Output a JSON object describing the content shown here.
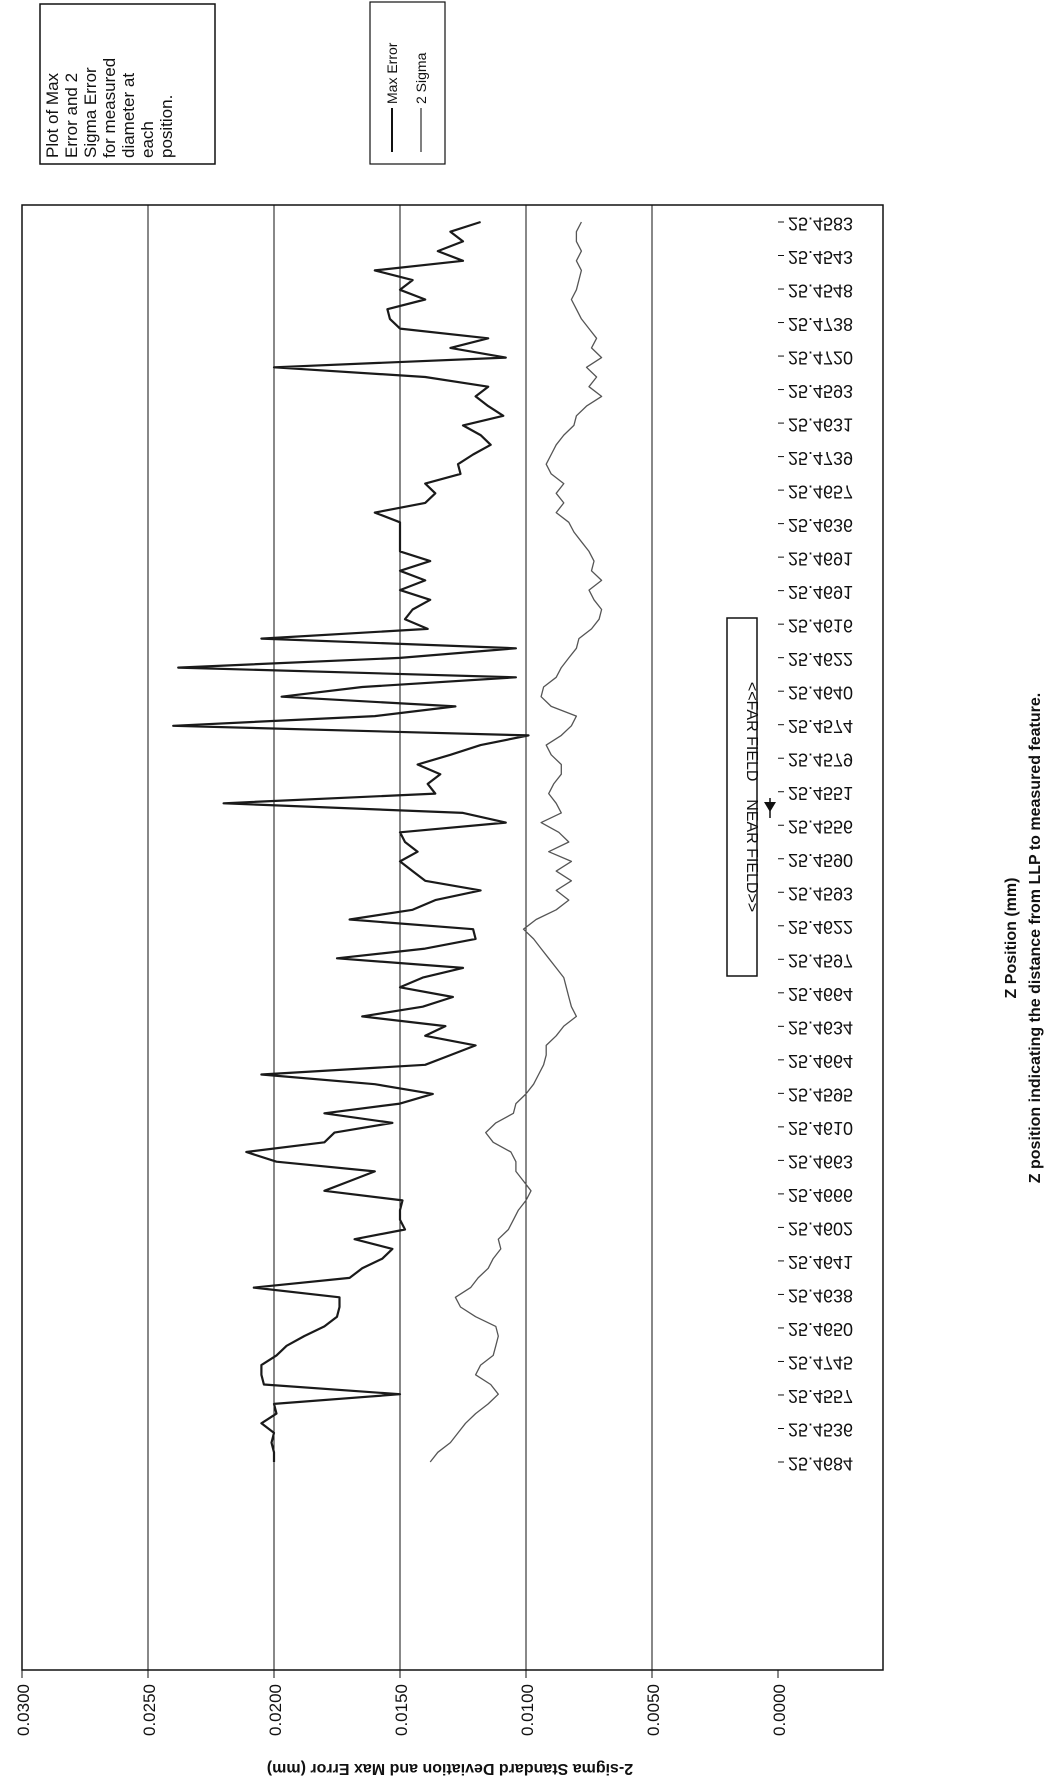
{
  "chart_data": {
    "type": "line",
    "orientation": "rotated 90 degrees clockwise (value axis runs left-to-right along the bottom, position axis runs top-to-bottom)",
    "title": "",
    "xlabel": "Z Position (mm)",
    "xlabel_sub": "Z position indicating the distance from LLP to measured feature.",
    "ylabel": "2-sigma Standard Deviation and Max Error (mm)",
    "ylim": [
      0,
      0.03
    ],
    "y_ticks": [
      "0.0000",
      "0.0050",
      "0.0100",
      "0.0150",
      "0.0200",
      "0.0250",
      "0.0300"
    ],
    "grid": "major gridlines on value axis",
    "legend_position": "top-right",
    "x_tick_labels": [
      "25.4684",
      "25.4536",
      "25.4557",
      "25.4745",
      "25.4650",
      "25.4638",
      "25.4641",
      "25.4602",
      "25.4666",
      "25.4663",
      "25.4610",
      "25.4595",
      "25.4664",
      "25.4634",
      "25.4664",
      "25.4597",
      "25.4622",
      "25.4593",
      "25.4590",
      "25.4556",
      "25.4551",
      "25.4579",
      "25.4574",
      "25.4640",
      "25.4622",
      "25.4616",
      "25.4691",
      "25.4691",
      "25.4636",
      "25.4657",
      "25.4739",
      "25.4631",
      "25.4593",
      "25.4720",
      "25.4738",
      "25.4548",
      "25.4543",
      "25.4583"
    ],
    "categories_count": 129,
    "series": [
      {
        "name": "Max Error",
        "color": "#1a1a1a",
        "values": [
          0.02,
          0.02,
          0.0201,
          0.02,
          0.0205,
          0.0199,
          0.02,
          0.015,
          0.0204,
          0.0205,
          0.0205,
          0.0199,
          0.0195,
          0.0188,
          0.018,
          0.0175,
          0.0174,
          0.0174,
          0.0208,
          0.017,
          0.0165,
          0.0157,
          0.0153,
          0.0168,
          0.0148,
          0.015,
          0.015,
          0.0149,
          0.018,
          0.017,
          0.016,
          0.0199,
          0.0211,
          0.018,
          0.0176,
          0.0153,
          0.018,
          0.015,
          0.0137,
          0.016,
          0.0205,
          0.014,
          0.013,
          0.012,
          0.014,
          0.0132,
          0.0165,
          0.0141,
          0.0129,
          0.015,
          0.0141,
          0.0125,
          0.0175,
          0.014,
          0.012,
          0.0121,
          0.017,
          0.0145,
          0.0136,
          0.0118,
          0.014,
          0.0145,
          0.015,
          0.0143,
          0.0148,
          0.015,
          0.0108,
          0.0125,
          0.022,
          0.0136,
          0.0139,
          0.0134,
          0.0143,
          0.013,
          0.0118,
          0.0099,
          0.024,
          0.016,
          0.0128,
          0.0197,
          0.0165,
          0.0104,
          0.0238,
          0.015,
          0.0104,
          0.0205,
          0.0139,
          0.0148,
          0.0145,
          0.0138,
          0.015,
          0.014,
          0.015,
          0.0138,
          0.015,
          0.015,
          0.015,
          0.015,
          0.016,
          0.014,
          0.0136,
          0.014,
          0.0126,
          0.0127,
          0.0121,
          0.0114,
          0.0118,
          0.0125,
          0.0109,
          0.0115,
          0.012,
          0.0115,
          0.014,
          0.02,
          0.0108,
          0.013,
          0.0115,
          0.015,
          0.0154,
          0.0155,
          0.014,
          0.015,
          0.0145,
          0.016,
          0.0125,
          0.0135,
          0.0125,
          0.013,
          0.0118
        ]
      },
      {
        "name": "2 Sigma",
        "color": "#555555",
        "values": [
          0.0138,
          0.0135,
          0.013,
          0.0127,
          0.0124,
          0.012,
          0.0115,
          0.0111,
          0.0114,
          0.012,
          0.0118,
          0.0113,
          0.0112,
          0.0111,
          0.0112,
          0.012,
          0.0126,
          0.0128,
          0.0122,
          0.0119,
          0.0115,
          0.0113,
          0.011,
          0.0111,
          0.0107,
          0.0105,
          0.0103,
          0.01,
          0.0098,
          0.0101,
          0.0104,
          0.0104,
          0.0106,
          0.0113,
          0.0116,
          0.0112,
          0.0105,
          0.0104,
          0.01,
          0.0097,
          0.0095,
          0.0093,
          0.0092,
          0.0092,
          0.0088,
          0.0085,
          0.008,
          0.0082,
          0.0083,
          0.0084,
          0.0085,
          0.0088,
          0.0091,
          0.0094,
          0.0097,
          0.0101,
          0.0096,
          0.0088,
          0.0083,
          0.0088,
          0.0082,
          0.0088,
          0.0082,
          0.0091,
          0.0083,
          0.0087,
          0.0094,
          0.0086,
          0.0088,
          0.0091,
          0.0089,
          0.0086,
          0.0086,
          0.009,
          0.0092,
          0.0086,
          0.0082,
          0.008,
          0.009,
          0.0094,
          0.0093,
          0.0088,
          0.0086,
          0.0083,
          0.008,
          0.0079,
          0.0074,
          0.0071,
          0.007,
          0.0073,
          0.0075,
          0.007,
          0.0074,
          0.0073,
          0.0075,
          0.0078,
          0.0081,
          0.0083,
          0.0088,
          0.0085,
          0.0088,
          0.0085,
          0.009,
          0.0092,
          0.009,
          0.0088,
          0.0085,
          0.0081,
          0.008,
          0.0076,
          0.007,
          0.0075,
          0.0072,
          0.0076,
          0.007,
          0.0074,
          0.0072,
          0.0075,
          0.0078,
          0.008,
          0.0082,
          0.008,
          0.0079,
          0.0078,
          0.008,
          0.0078,
          0.008,
          0.008,
          0.0078
        ]
      }
    ],
    "legend_entries": [
      "Max Error",
      "2 Sigma"
    ],
    "annotations": {
      "note_box": "Plot of Max Error and 2 Sigma Error for measured diameter at each position.",
      "field_box": "<<FAR FIELD    NEAR FIELD>>"
    }
  }
}
